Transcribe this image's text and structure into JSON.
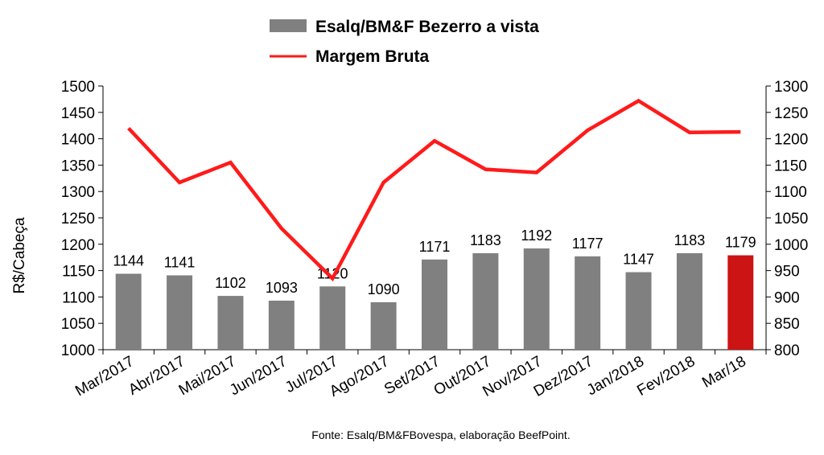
{
  "chart_data": {
    "type": "bar",
    "categories": [
      "Mar/2017",
      "Abr/2017",
      "Mai/2017",
      "Jun/2017",
      "Jul/2017",
      "Ago/2017",
      "Set/2017",
      "Out/2017",
      "Nov/2017",
      "Dez/2017",
      "Jan/2018",
      "Fev/2018",
      "Mar/18"
    ],
    "series": [
      {
        "name": "Esalq/BM&F Bezerro a vista",
        "type": "bar",
        "axis": "left",
        "values": [
          1144,
          1141,
          1102,
          1093,
          1120,
          1090,
          1171,
          1183,
          1192,
          1177,
          1147,
          1183,
          1179
        ],
        "color": "#808080",
        "highlight_last_color": "#cc1414"
      },
      {
        "name": "Margem Bruta",
        "type": "line",
        "axis": "right",
        "values": [
          1220,
          1117,
          1155,
          1030,
          935,
          1117,
          1196,
          1142,
          1136,
          1216,
          1272,
          1212,
          1213
        ],
        "color": "#ff1a1a"
      }
    ],
    "ylabel": "R$/Cabeça",
    "ylim": [
      1000,
      1500
    ],
    "yticks": [
      1000,
      1050,
      1100,
      1150,
      1200,
      1250,
      1300,
      1350,
      1400,
      1450,
      1500
    ],
    "y2lim": [
      800,
      1300
    ],
    "y2ticks": [
      800,
      850,
      900,
      950,
      1000,
      1050,
      1100,
      1150,
      1200,
      1250,
      1300
    ],
    "legend_position": "top-center",
    "grid": false
  },
  "source_note": "Fonte:  Esalq/BM&FBovespa,  elaboração  BeefPoint."
}
